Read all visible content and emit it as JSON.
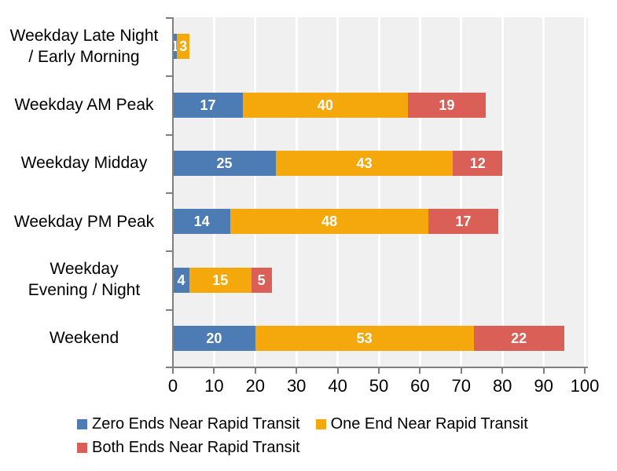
{
  "chart_data": {
    "type": "bar",
    "orientation": "horizontal",
    "stacked": true,
    "title": "",
    "categories": [
      "Weekday Late Night\n/ Early Morning",
      "Weekday AM Peak",
      "Weekday Midday",
      "Weekday PM Peak",
      "Weekday\nEvening / Night",
      "Weekend"
    ],
    "series": [
      {
        "name": "Zero Ends Near Rapid Transit",
        "color": "#4D7CB5",
        "values": [
          1,
          17,
          25,
          14,
          4,
          20
        ]
      },
      {
        "name": "One End Near Rapid Transit",
        "color": "#F4A80B",
        "values": [
          3,
          40,
          43,
          48,
          15,
          53
        ]
      },
      {
        "name": "Both Ends Near Rapid Transit",
        "color": "#D95F57",
        "values": [
          0,
          19,
          12,
          17,
          5,
          22
        ]
      }
    ],
    "xlim": [
      0,
      100
    ],
    "x_ticks": [
      0,
      10,
      20,
      30,
      40,
      50,
      60,
      70,
      80,
      90,
      100
    ],
    "grid": "vertical-white-gridlines",
    "legend_position": "bottom",
    "legend_rows": [
      [
        0,
        1
      ],
      [
        2
      ]
    ],
    "colors": {
      "plot_bg": "#F0F0F0",
      "gridline": "#FFFFFF",
      "axis": "#7F7F7F",
      "text": "#000000",
      "bar_label": "#FFFFFF"
    }
  }
}
